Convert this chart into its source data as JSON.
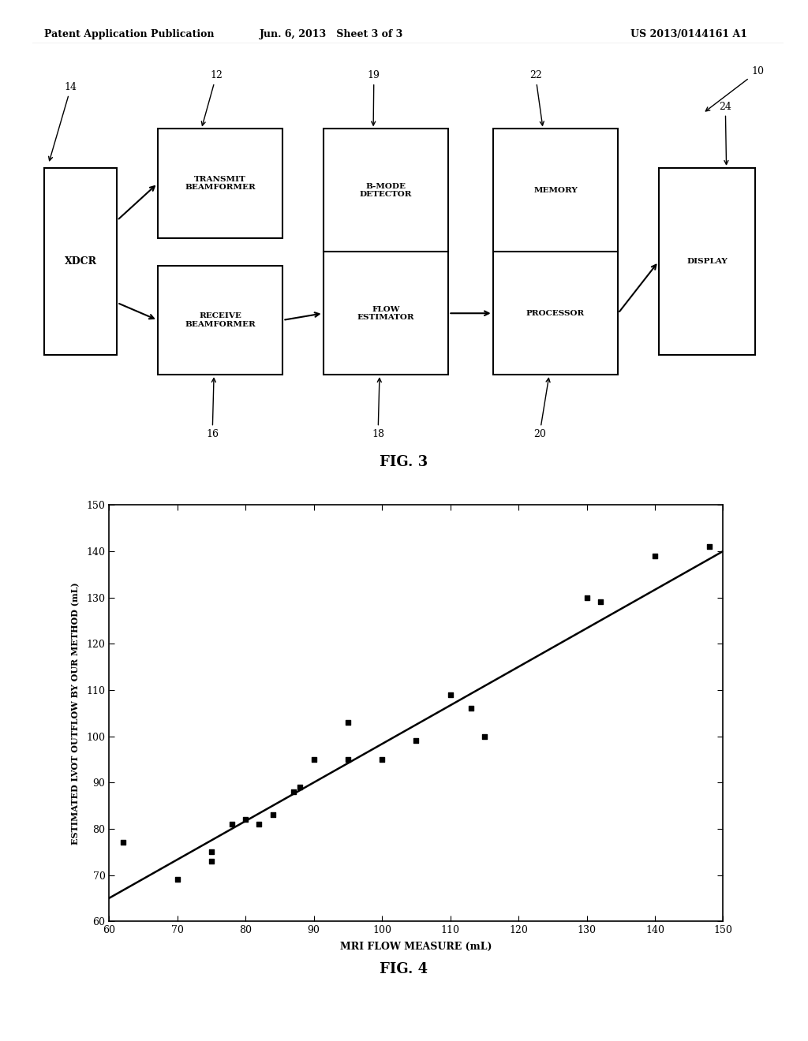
{
  "header_left": "Patent Application Publication",
  "header_mid": "Jun. 6, 2013   Sheet 3 of 3",
  "header_right": "US 2013/0144161 A1",
  "fig3_label": "FIG. 3",
  "fig4_label": "FIG. 4",
  "scatter": {
    "x": [
      62,
      70,
      75,
      75,
      78,
      80,
      82,
      84,
      87,
      88,
      90,
      95,
      95,
      100,
      105,
      110,
      113,
      115,
      130,
      132,
      140,
      148
    ],
    "y": [
      77,
      69,
      75,
      73,
      81,
      82,
      81,
      83,
      88,
      89,
      95,
      95,
      103,
      95,
      99,
      109,
      106,
      100,
      130,
      129,
      139,
      141
    ],
    "line_x": [
      60,
      150
    ],
    "line_y": [
      65,
      140
    ],
    "xlabel": "MRI FLOW MEASURE (mL)",
    "ylabel": "ESTIMATED LVOT OUTFLOW BY OUR METHOD (mL)",
    "xlim": [
      60,
      150
    ],
    "ylim": [
      60,
      150
    ],
    "xticks": [
      60,
      70,
      80,
      90,
      100,
      110,
      120,
      130,
      140,
      150
    ],
    "yticks": [
      60,
      70,
      80,
      90,
      100,
      110,
      120,
      130,
      140,
      150
    ]
  }
}
